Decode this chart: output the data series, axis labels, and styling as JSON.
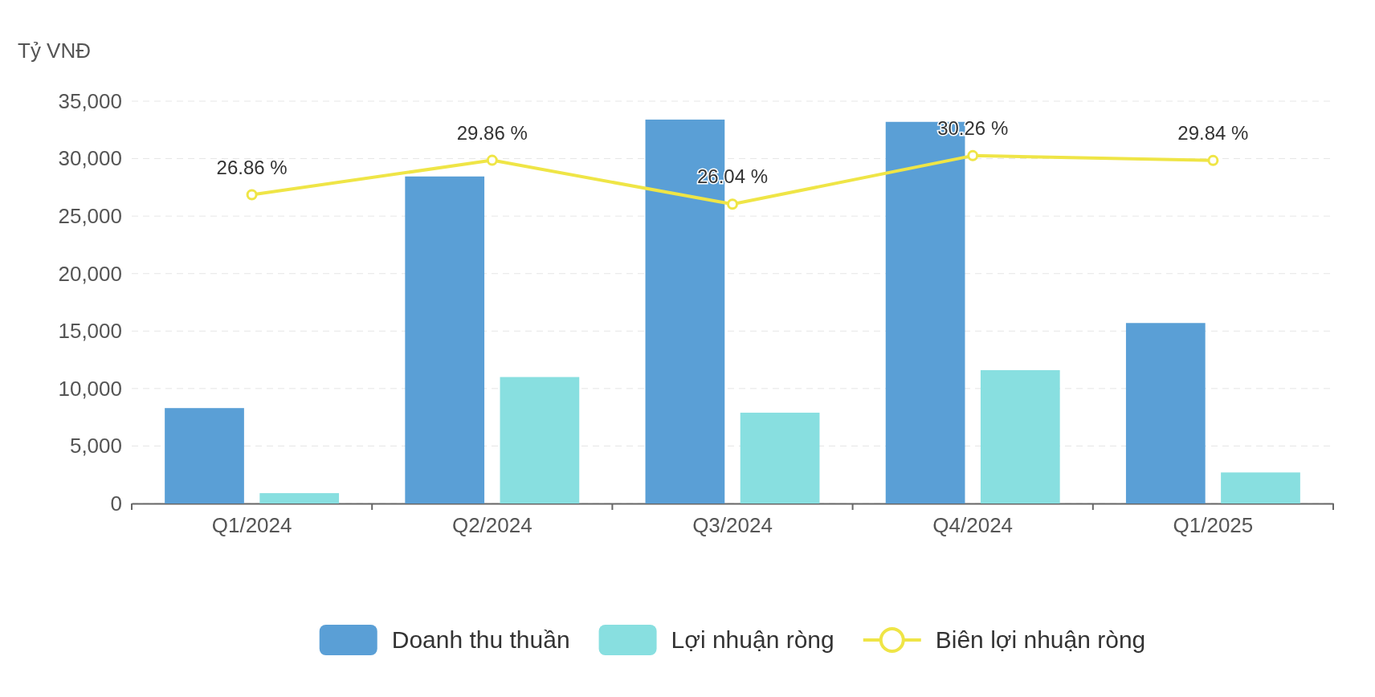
{
  "chart_data": {
    "type": "bar",
    "ylabel": "Tỷ VNĐ",
    "categories": [
      "Q1/2024",
      "Q2/2024",
      "Q3/2024",
      "Q4/2024",
      "Q1/2025"
    ],
    "series": [
      {
        "name": "Doanh thu thuần",
        "color": "#5a9fd6",
        "values": [
          8300,
          28450,
          33400,
          33200,
          15700
        ]
      },
      {
        "name": "Lợi nhuận ròng",
        "color": "#88dfe0",
        "values": [
          900,
          11000,
          7900,
          11600,
          2700
        ]
      },
      {
        "name": "Biên lợi nhuận ròng",
        "type": "line",
        "axis": "y2",
        "color": "#efe546",
        "marker": "circle",
        "values": [
          26.86,
          29.86,
          26.04,
          30.26,
          29.84
        ],
        "value_labels": [
          "26.86 %",
          "29.86 %",
          "26.04 %",
          "30.26 %",
          "29.84 %"
        ]
      }
    ],
    "ylim": [
      0,
      35000
    ],
    "yticks": [
      {
        "value": 0,
        "label": "0"
      },
      {
        "value": 5000,
        "label": "5,000"
      },
      {
        "value": 10000,
        "label": "10,000"
      },
      {
        "value": 15000,
        "label": "15,000"
      },
      {
        "value": 20000,
        "label": "20,000"
      },
      {
        "value": 25000,
        "label": "25,000"
      },
      {
        "value": 30000,
        "label": "30,000"
      },
      {
        "value": 35000,
        "label": "35,000"
      }
    ],
    "y2lim": [
      0,
      35
    ],
    "grid": "y",
    "legend": "bottom"
  }
}
